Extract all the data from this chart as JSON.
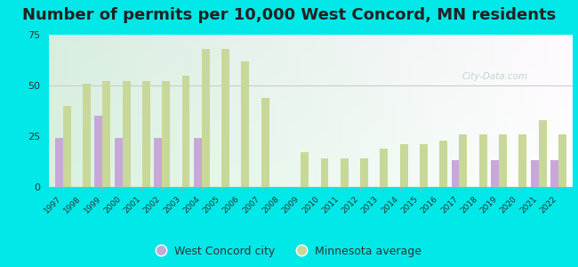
{
  "title": "Number of permits per 10,000 West Concord, MN residents",
  "years": [
    1997,
    1998,
    1999,
    2000,
    2001,
    2002,
    2003,
    2004,
    2005,
    2006,
    2007,
    2008,
    2009,
    2010,
    2011,
    2012,
    2013,
    2014,
    2015,
    2016,
    2017,
    2018,
    2019,
    2020,
    2021,
    2022
  ],
  "city_values": [
    24,
    0,
    35,
    24,
    0,
    24,
    0,
    24,
    0,
    0,
    0,
    0,
    0,
    0,
    0,
    0,
    0,
    0,
    0,
    0,
    13,
    0,
    13,
    0,
    13,
    13
  ],
  "mn_values": [
    40,
    51,
    52,
    52,
    52,
    52,
    55,
    68,
    68,
    62,
    44,
    0,
    17,
    14,
    14,
    14,
    19,
    21,
    21,
    23,
    26,
    26,
    26,
    26,
    33,
    26
  ],
  "city_color": "#c8a8d8",
  "mn_color": "#c8d898",
  "outer_bg": "#00e8e8",
  "ylim": [
    0,
    75
  ],
  "yticks": [
    0,
    25,
    50,
    75
  ],
  "title_fontsize": 13,
  "bar_width": 0.4,
  "hline_y": 50,
  "hline_color": "#cccccc",
  "bg_color_top_left": "#c8ecd8",
  "bg_color_bottom_right": "#f0faf4"
}
